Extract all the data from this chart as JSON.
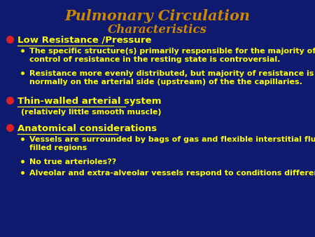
{
  "bg_color": "#0d1a6e",
  "title_line1": "Pulmonary Circulation",
  "title_line2": "Characteristics",
  "title_color": "#cc8800",
  "title_fontsize": 15,
  "subtitle_fontsize": 12,
  "bullet_color": "#ffff00",
  "bullet_fontsize": 9.5,
  "sub_bullet_fontsize": 8.0,
  "bullet_dot_color": "#dd2222",
  "sections": [
    {
      "header": "Low Resistance /Pressure",
      "underline": true,
      "sub_bullets": [
        "The specific structure(s) primarily responsible for the majority of\ncontrol of resistance in the resting state is controversial.",
        "Resistance more evenly distributed, but majority of resistance is\nnormally on the arterial side (upstream) of the the capillaries."
      ],
      "sub_plain": [
        false,
        false
      ]
    },
    {
      "header": "Thin-walled arterial system",
      "underline": true,
      "sub_bullets": [
        "(relatively little smooth muscle)"
      ],
      "sub_plain": [
        true
      ]
    },
    {
      "header": "Anatomical considerations",
      "underline": true,
      "sub_bullets": [
        "Vessels are surrounded by bags of gas and flexible interstitial fluid-\nfilled regions",
        "No true arterioles??",
        "Alveolar and extra-alveolar vessels respond to conditions differently"
      ],
      "sub_plain": [
        false,
        false,
        false
      ]
    }
  ]
}
